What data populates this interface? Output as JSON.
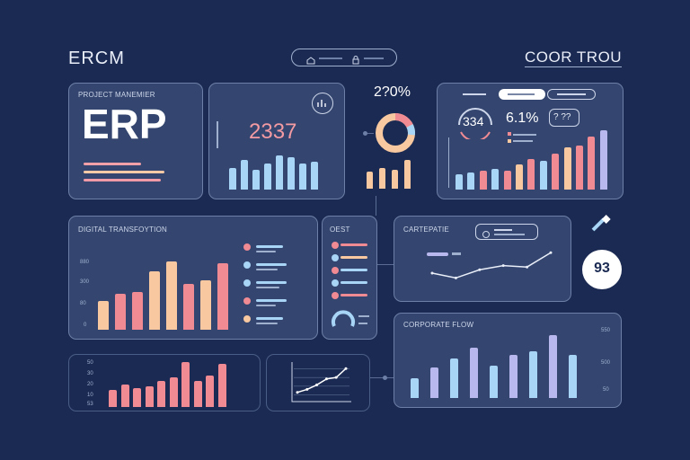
{
  "header": {
    "left_title": "ERCM",
    "right_title": "COOR TROU",
    "center_pill": {
      "left_icon": "home-icon",
      "right_icon": "lock-icon"
    }
  },
  "erp_panel": {
    "subtitle": "PROJECT MANEMIER",
    "big_text": "ERP",
    "lines": [
      "#f4a0a8",
      "#f5c9a6",
      "#f19aa7"
    ]
  },
  "value_panel": {
    "value": "2337",
    "icon": "chart-icon"
  },
  "donut": {
    "percent": "2?0%"
  },
  "top_right_panel": {
    "tabs": [
      "",
      "",
      ""
    ],
    "gauge_value": "334",
    "percent": "6.1%",
    "mini_card": "? ??"
  },
  "digital_panel": {
    "title": "DIGITAL TRANSFOYTION",
    "ticks": [
      "880",
      "300",
      "80",
      "0"
    ]
  },
  "list_panel": {
    "title": "OEST"
  },
  "graph_panel": {
    "title": "CARTEPATIE"
  },
  "badge": {
    "value": "93"
  },
  "flow_panel": {
    "title": "CORPORATE FLOW",
    "ticks": [
      "550",
      "500",
      "50"
    ]
  },
  "bottom_left_panel": {
    "ticks": [
      "50",
      "30",
      "20",
      "10",
      "53"
    ]
  },
  "colors": {
    "background": "#1b2a52",
    "panel": "#34466f",
    "pink": "#f08a93",
    "peach": "#f8c9a0",
    "blue": "#a8d4f5",
    "lavender": "#b9b8ee",
    "white": "#ffffff"
  },
  "chart_data": [
    {
      "type": "bar",
      "name": "value-panel-bars",
      "values": [
        22,
        30,
        20,
        26,
        34,
        32,
        26,
        28
      ]
    },
    {
      "type": "bar",
      "name": "donut-panel-bars",
      "values": [
        18,
        22,
        20,
        30
      ]
    },
    {
      "type": "bar",
      "name": "top-right-bars",
      "values": [
        16,
        18,
        20,
        22,
        20,
        26,
        32,
        30,
        38,
        44,
        46,
        56,
        62
      ]
    },
    {
      "type": "bar",
      "name": "digital-bars",
      "values": [
        30,
        38,
        40,
        62,
        72,
        48,
        52,
        70
      ]
    },
    {
      "type": "bar",
      "name": "bottom-left-bars",
      "values": [
        20,
        26,
        22,
        24,
        30,
        34,
        52,
        30,
        36,
        50
      ]
    },
    {
      "type": "line",
      "name": "small-trend",
      "values": [
        10,
        14,
        20,
        28,
        30,
        42
      ]
    },
    {
      "type": "line",
      "name": "cartepatie-trend",
      "values": [
        25,
        18,
        30,
        36,
        34,
        55
      ]
    },
    {
      "type": "bar",
      "name": "flow-bars",
      "values": [
        22,
        34,
        44,
        56,
        36,
        48,
        52,
        70,
        48
      ]
    }
  ]
}
